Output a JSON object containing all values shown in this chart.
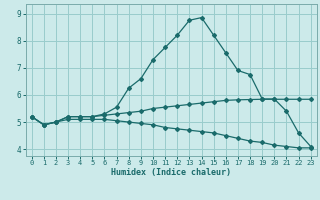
{
  "xlabel": "Humidex (Indice chaleur)",
  "ylabel": "",
  "background_color": "#cceaea",
  "grid_color": "#99cccc",
  "line_color": "#1a6b6b",
  "xlim": [
    -0.5,
    23.5
  ],
  "ylim": [
    3.75,
    9.35
  ],
  "xticks": [
    0,
    1,
    2,
    3,
    4,
    5,
    6,
    7,
    8,
    9,
    10,
    11,
    12,
    13,
    14,
    15,
    16,
    17,
    18,
    19,
    20,
    21,
    22,
    23
  ],
  "yticks": [
    4,
    5,
    6,
    7,
    8,
    9
  ],
  "line1_x": [
    0,
    1,
    2,
    3,
    4,
    5,
    6,
    7,
    8,
    9,
    10,
    11,
    12,
    13,
    14,
    15,
    16,
    17,
    18,
    19,
    20,
    21,
    22,
    23
  ],
  "line1_y": [
    5.2,
    4.9,
    5.0,
    5.2,
    5.2,
    5.2,
    5.25,
    5.3,
    5.35,
    5.4,
    5.5,
    5.55,
    5.6,
    5.65,
    5.7,
    5.75,
    5.8,
    5.82,
    5.83,
    5.84,
    5.84,
    5.84,
    5.84,
    5.84
  ],
  "line2_x": [
    0,
    1,
    2,
    3,
    4,
    5,
    6,
    7,
    8,
    9,
    10,
    11,
    12,
    13,
    14,
    15,
    16,
    17,
    18,
    19,
    20,
    21,
    22,
    23
  ],
  "line2_y": [
    5.2,
    4.9,
    5.0,
    5.2,
    5.2,
    5.2,
    5.3,
    5.55,
    6.25,
    6.6,
    7.3,
    7.75,
    8.2,
    8.75,
    8.85,
    8.2,
    7.55,
    6.9,
    6.75,
    5.85,
    5.85,
    5.4,
    4.6,
    4.1
  ],
  "line3_x": [
    0,
    1,
    2,
    3,
    4,
    5,
    6,
    7,
    8,
    9,
    10,
    11,
    12,
    13,
    14,
    15,
    16,
    17,
    18,
    19,
    20,
    21,
    22,
    23
  ],
  "line3_y": [
    5.2,
    4.9,
    5.0,
    5.1,
    5.1,
    5.1,
    5.1,
    5.05,
    5.0,
    4.95,
    4.9,
    4.8,
    4.75,
    4.7,
    4.65,
    4.6,
    4.5,
    4.4,
    4.3,
    4.25,
    4.15,
    4.1,
    4.05,
    4.05
  ]
}
